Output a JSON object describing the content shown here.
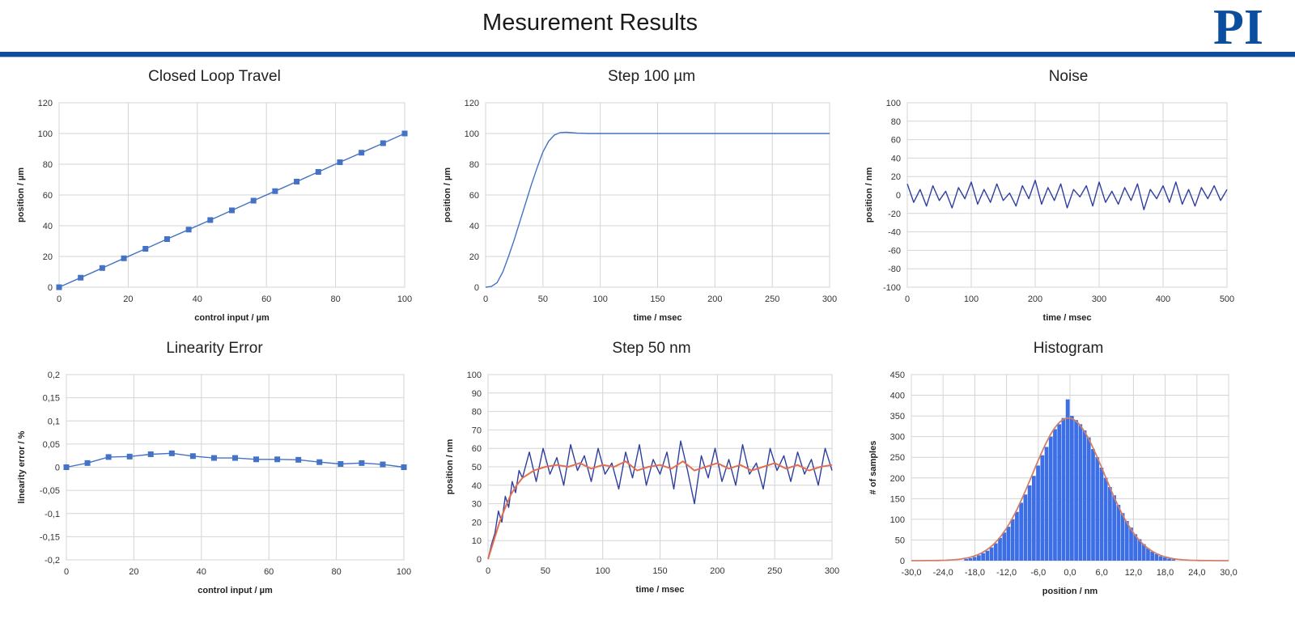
{
  "header": {
    "title": "Mesurement Results",
    "logo_text": "PI",
    "brand_color": "#0d4d9c"
  },
  "chart_data": [
    {
      "id": "closed-loop-travel",
      "type": "line",
      "title": "Closed Loop Travel",
      "xlabel": "control input / µm",
      "ylabel": "position / µm",
      "xlim": [
        0,
        100
      ],
      "ylim": [
        0,
        120
      ],
      "xticks": [
        0,
        20,
        40,
        60,
        80,
        100
      ],
      "yticks": [
        0,
        20,
        40,
        60,
        80,
        100,
        120
      ],
      "xticklabels": [
        "0",
        "20",
        "40",
        "60",
        "80",
        "100"
      ],
      "yticklabels": [
        "0",
        "20",
        "40",
        "60",
        "80",
        "100",
        "120"
      ],
      "grid": true,
      "markers": true,
      "series": [
        {
          "color": "#4472c4",
          "x": [
            0,
            6.25,
            12.5,
            18.75,
            25,
            31.25,
            37.5,
            43.75,
            50,
            56.25,
            62.5,
            68.75,
            75,
            81.25,
            87.5,
            93.75,
            100
          ],
          "y": [
            0,
            6.2,
            12.5,
            18.8,
            25,
            31.3,
            37.5,
            43.7,
            50,
            56.3,
            62.5,
            68.7,
            75,
            81.3,
            87.5,
            93.7,
            100
          ]
        }
      ]
    },
    {
      "id": "step-100-um",
      "type": "line",
      "title": "Step 100 µm",
      "xlabel": "time / msec",
      "ylabel": "position / µm",
      "xlim": [
        0,
        300
      ],
      "ylim": [
        0,
        120
      ],
      "xticks": [
        0,
        50,
        100,
        150,
        200,
        250,
        300
      ],
      "yticks": [
        0,
        20,
        40,
        60,
        80,
        100,
        120
      ],
      "xticklabels": [
        "0",
        "50",
        "100",
        "150",
        "200",
        "250",
        "300"
      ],
      "yticklabels": [
        "0",
        "20",
        "40",
        "60",
        "80",
        "100",
        "120"
      ],
      "grid": true,
      "series": [
        {
          "color": "#4472c4",
          "x": [
            0,
            5,
            10,
            15,
            20,
            25,
            30,
            35,
            40,
            45,
            50,
            55,
            60,
            65,
            70,
            75,
            80,
            90,
            100,
            150,
            200,
            250,
            300
          ],
          "y": [
            0,
            0.5,
            3,
            10,
            20,
            31,
            43,
            55,
            67,
            78,
            88,
            95,
            99,
            100.6,
            100.8,
            100.5,
            100.2,
            100,
            100,
            100,
            100,
            100,
            100
          ]
        }
      ]
    },
    {
      "id": "noise",
      "type": "line",
      "title": "Noise",
      "xlabel": "time / msec",
      "ylabel": "position / nm",
      "xlim": [
        0,
        500
      ],
      "ylim": [
        -100,
        100
      ],
      "xticks": [
        0,
        100,
        200,
        300,
        400,
        500
      ],
      "yticks": [
        -100,
        -80,
        -60,
        -40,
        -20,
        0,
        20,
        40,
        60,
        80,
        100
      ],
      "xticklabels": [
        "0",
        "100",
        "200",
        "300",
        "400",
        "500"
      ],
      "yticklabels": [
        "-100",
        "-80",
        "-60",
        "-40",
        "-20",
        "0",
        "20",
        "40",
        "60",
        "80",
        "100"
      ],
      "grid": true,
      "series": [
        {
          "color": "#2e3f9e",
          "x": [
            0,
            10,
            20,
            30,
            40,
            50,
            60,
            70,
            80,
            90,
            100,
            110,
            120,
            130,
            140,
            150,
            160,
            170,
            180,
            190,
            200,
            210,
            220,
            230,
            240,
            250,
            260,
            270,
            280,
            290,
            300,
            310,
            320,
            330,
            340,
            350,
            360,
            370,
            380,
            390,
            400,
            410,
            420,
            430,
            440,
            450,
            460,
            470,
            480,
            490,
            500
          ],
          "y": [
            12,
            -8,
            6,
            -12,
            10,
            -6,
            4,
            -14,
            8,
            -4,
            14,
            -10,
            6,
            -8,
            12,
            -6,
            2,
            -12,
            10,
            -4,
            16,
            -10,
            8,
            -6,
            12,
            -14,
            6,
            -2,
            10,
            -12,
            14,
            -8,
            4,
            -10,
            8,
            -6,
            12,
            -16,
            6,
            -4,
            10,
            -8,
            14,
            -10,
            6,
            -12,
            8,
            -4,
            10,
            -6,
            6
          ]
        }
      ]
    },
    {
      "id": "linearity-error",
      "type": "line",
      "title": "Linearity Error",
      "xlabel": "control input / µm",
      "ylabel": "linearity error / %",
      "xlim": [
        0,
        100
      ],
      "ylim": [
        -0.2,
        0.2
      ],
      "xticks": [
        0,
        20,
        40,
        60,
        80,
        100
      ],
      "yticks": [
        -0.2,
        -0.15,
        -0.1,
        -0.05,
        0,
        0.05,
        0.1,
        0.15,
        0.2
      ],
      "xticklabels": [
        "0",
        "20",
        "40",
        "60",
        "80",
        "100"
      ],
      "yticklabels": [
        "-0,2",
        "-0,15",
        "-0,1",
        "-0,05",
        "0",
        "0,05",
        "0,1",
        "0,15",
        "0,2"
      ],
      "grid": true,
      "markers": true,
      "series": [
        {
          "color": "#4472c4",
          "x": [
            0,
            6.25,
            12.5,
            18.75,
            25,
            31.25,
            37.5,
            43.75,
            50,
            56.25,
            62.5,
            68.75,
            75,
            81.25,
            87.5,
            93.75,
            100
          ],
          "y": [
            0,
            0.009,
            0.022,
            0.023,
            0.028,
            0.03,
            0.024,
            0.02,
            0.02,
            0.017,
            0.017,
            0.016,
            0.011,
            0.007,
            0.009,
            0.006,
            0
          ]
        }
      ]
    },
    {
      "id": "step-50-nm",
      "type": "line",
      "title": "Step 50 nm",
      "xlabel": "time / msec",
      "ylabel": "position / nm",
      "xlim": [
        0,
        300
      ],
      "ylim": [
        0,
        100
      ],
      "xticks": [
        0,
        50,
        100,
        150,
        200,
        250,
        300
      ],
      "yticks": [
        0,
        10,
        20,
        30,
        40,
        50,
        60,
        70,
        80,
        90,
        100
      ],
      "xticklabels": [
        "0",
        "50",
        "100",
        "150",
        "200",
        "250",
        "300"
      ],
      "yticklabels": [
        "0",
        "10",
        "20",
        "30",
        "40",
        "50",
        "60",
        "70",
        "80",
        "90",
        "100"
      ],
      "grid": true,
      "series": [
        {
          "color": "#2e3f9e",
          "x": [
            0,
            3,
            6,
            9,
            12,
            15,
            18,
            21,
            24,
            27,
            30,
            36,
            42,
            48,
            54,
            60,
            66,
            72,
            78,
            84,
            90,
            96,
            102,
            108,
            114,
            120,
            126,
            132,
            138,
            144,
            150,
            156,
            162,
            168,
            174,
            180,
            186,
            192,
            198,
            204,
            210,
            216,
            222,
            228,
            234,
            240,
            246,
            252,
            258,
            264,
            270,
            276,
            282,
            288,
            294,
            300
          ],
          "y": [
            0,
            8,
            14,
            26,
            20,
            34,
            28,
            42,
            36,
            48,
            44,
            58,
            42,
            60,
            46,
            55,
            40,
            62,
            48,
            56,
            42,
            60,
            46,
            52,
            38,
            58,
            44,
            62,
            40,
            54,
            46,
            58,
            38,
            64,
            48,
            30,
            56,
            44,
            60,
            42,
            54,
            40,
            62,
            46,
            52,
            38,
            60,
            48,
            56,
            42,
            58,
            46,
            54,
            40,
            60,
            48
          ]
        },
        {
          "color": "#e07050",
          "x": [
            0,
            5,
            10,
            15,
            20,
            25,
            30,
            40,
            50,
            60,
            70,
            80,
            90,
            100,
            110,
            120,
            130,
            140,
            150,
            160,
            170,
            180,
            190,
            200,
            210,
            220,
            230,
            240,
            250,
            260,
            270,
            280,
            290,
            300
          ],
          "y": [
            0,
            10,
            20,
            28,
            35,
            40,
            44,
            48,
            50,
            51,
            50,
            52,
            49,
            51,
            50,
            53,
            48,
            50,
            51,
            49,
            53,
            48,
            50,
            52,
            49,
            51,
            48,
            50,
            52,
            49,
            51,
            48,
            50,
            51
          ]
        }
      ]
    },
    {
      "id": "histogram",
      "type": "bar",
      "title": "Histogram",
      "xlabel": "position / nm",
      "ylabel": "# of samples",
      "xlim": [
        -30,
        30
      ],
      "ylim": [
        0,
        450
      ],
      "xticks": [
        -30,
        -24,
        -18,
        -12,
        -6,
        0,
        6,
        12,
        18,
        24,
        30
      ],
      "yticks": [
        0,
        50,
        100,
        150,
        200,
        250,
        300,
        350,
        400,
        450
      ],
      "xticklabels": [
        "-30,0",
        "-24,0",
        "-18,0",
        "-12,0",
        "-6,0",
        "0,0",
        "6,0",
        "12,0",
        "18,0",
        "24,0",
        "30,0"
      ],
      "yticklabels": [
        "0",
        "50",
        "100",
        "150",
        "200",
        "250",
        "300",
        "350",
        "400",
        "450"
      ],
      "grid": true,
      "bin_width": 0.8,
      "bar_color": "#3c6ee6",
      "fit_color": "#d0806a",
      "fit": {
        "mean": -0.3,
        "sigma": 6.8,
        "peak": 345
      },
      "bins": [
        -19.6,
        -18.8,
        -18,
        -17.2,
        -16.4,
        -15.6,
        -14.8,
        -14,
        -13.2,
        -12.4,
        -11.6,
        -10.8,
        -10,
        -9.2,
        -8.4,
        -7.6,
        -6.8,
        -6,
        -5.2,
        -4.4,
        -3.6,
        -2.8,
        -2,
        -1.2,
        -0.4,
        0.4,
        1.2,
        2,
        2.8,
        3.6,
        4.4,
        5.2,
        6,
        6.8,
        7.6,
        8.4,
        9.2,
        10,
        10.8,
        11.6,
        12.4,
        13.2,
        14,
        14.8,
        15.6,
        16.4,
        17.2,
        18,
        18.8,
        19.6
      ],
      "values": [
        4,
        6,
        9,
        13,
        18,
        24,
        32,
        42,
        55,
        68,
        82,
        100,
        118,
        140,
        160,
        182,
        205,
        230,
        255,
        275,
        300,
        318,
        330,
        345,
        390,
        350,
        340,
        330,
        315,
        298,
        270,
        250,
        225,
        200,
        178,
        158,
        135,
        115,
        96,
        80,
        64,
        52,
        40,
        30,
        22,
        16,
        11,
        8,
        5,
        3
      ]
    }
  ]
}
